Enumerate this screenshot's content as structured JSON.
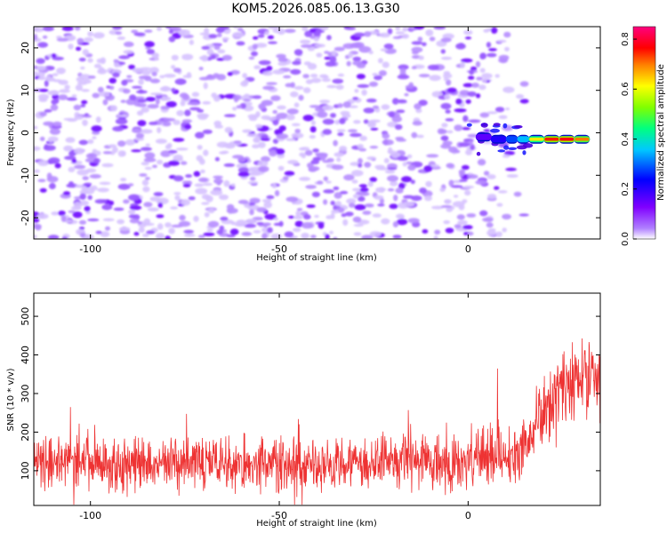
{
  "title": "KOM5.2026.085.06.13.G30",
  "chart_data": [
    {
      "type": "heatmap",
      "xlabel": "Height of straight line (km)",
      "ylabel": "Frequency (Hz)",
      "xlim": [
        -115,
        35
      ],
      "ylim": [
        -25,
        25
      ],
      "xticks": [
        -100,
        -50,
        0
      ],
      "xtick_labels": [
        "-100",
        "-50",
        "0"
      ],
      "yticks": [
        -20,
        -10,
        0,
        10,
        20
      ],
      "ytick_labels": [
        "-20",
        "-10",
        "0",
        "10",
        "20"
      ],
      "colorbar": {
        "label": "Normalized spectral amplitude",
        "range": [
          0.0,
          0.85
        ],
        "ticks": [
          0.0,
          0.2,
          0.4,
          0.6,
          0.8
        ],
        "tick_labels": [
          "0.0",
          "0.2",
          "0.4",
          "0.6",
          "0.8"
        ],
        "colors": [
          "#ffffff",
          "#8000ff",
          "#0000ff",
          "#00ffff",
          "#00ff00",
          "#ffff00",
          "#ff8000",
          "#ff0000",
          "#ff00ff"
        ]
      },
      "noise_region": {
        "x_range": [
          -115,
          15
        ],
        "y_range": [
          -25,
          25
        ],
        "typical_amplitude": [
          0.0,
          0.15
        ],
        "color": "#8a2be2"
      },
      "signal_track": {
        "points": [
          {
            "x": 2,
            "y": -1,
            "amp": 0.2
          },
          {
            "x": 6,
            "y": -1.5,
            "amp": 0.25
          },
          {
            "x": 10,
            "y": -1.5,
            "amp": 0.35
          },
          {
            "x": 13,
            "y": -1.5,
            "amp": 0.45
          },
          {
            "x": 16,
            "y": -1.5,
            "amp": 0.55
          },
          {
            "x": 20,
            "y": -1.5,
            "amp": 0.7
          },
          {
            "x": 24,
            "y": -1.5,
            "amp": 0.8
          },
          {
            "x": 28,
            "y": -1.5,
            "amp": 0.75
          },
          {
            "x": 32,
            "y": -1.5,
            "amp": 0.65
          }
        ]
      }
    },
    {
      "type": "line",
      "xlabel": "Height of straight line (km)",
      "ylabel": "SNR (10 * v/v)",
      "xlim": [
        -115,
        35
      ],
      "ylim": [
        10,
        560
      ],
      "xticks": [
        -100,
        -50,
        0
      ],
      "xtick_labels": [
        "-100",
        "-50",
        "0"
      ],
      "yticks": [
        100,
        200,
        300,
        400,
        500
      ],
      "ytick_labels": [
        "100",
        "200",
        "300",
        "400",
        "500"
      ],
      "color": "#ee3333",
      "envelope": {
        "x": [
          -115,
          -100,
          -80,
          -60,
          -40,
          -20,
          -5,
          5,
          15,
          18,
          25,
          35
        ],
        "mean": [
          130,
          120,
          120,
          120,
          115,
          120,
          130,
          140,
          145,
          220,
          330,
          350
        ],
        "spread": [
          80,
          80,
          80,
          80,
          75,
          80,
          85,
          90,
          95,
          110,
          110,
          110
        ]
      }
    }
  ]
}
